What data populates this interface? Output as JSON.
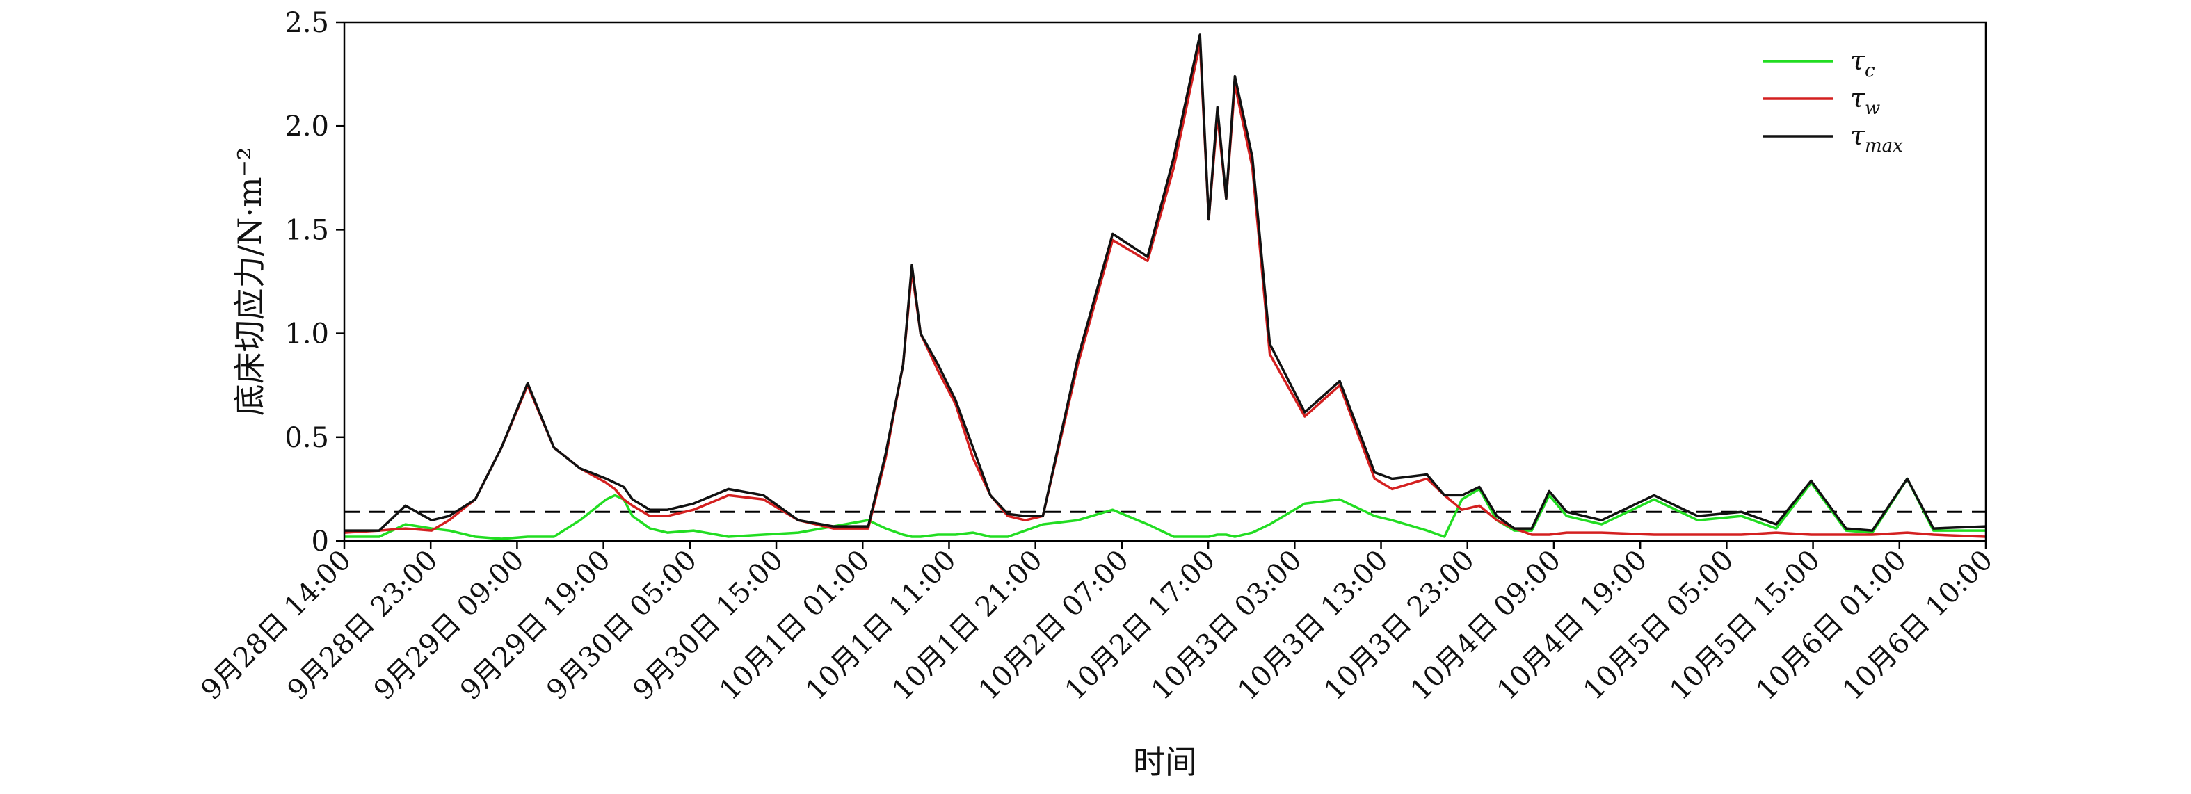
{
  "chart_data": {
    "type": "line",
    "xlabel": "时间",
    "ylabel": "底床切应力/N·m⁻²",
    "ylim": [
      0,
      2.5
    ],
    "yticks": [
      "0",
      "0.5",
      "1.0",
      "1.5",
      "2.0",
      "2.5"
    ],
    "xtick_labels": [
      "9月28日 14:00",
      "9月28日 23:00",
      "9月29日 09:00",
      "9月29日 19:00",
      "9月30日 05:00",
      "9月30日 15:00",
      "10月1日 01:00",
      "10月1日 11:00",
      "10月1日 21:00",
      "10月2日 07:00",
      "10月2日 17:00",
      "10月3日 03:00",
      "10月3日 13:00",
      "10月3日 23:00",
      "10月4日 09:00",
      "10月4日 19:00",
      "10月5日 05:00",
      "10月5日 15:00",
      "10月6日 01:00",
      "10月6日 10:00"
    ],
    "x_unit": "hours since 9月28日 14:00",
    "x_range": [
      0,
      188
    ],
    "threshold": {
      "value": 0.14,
      "style": "dashed",
      "color": "#000000"
    },
    "grid": false,
    "legend_position": "top-right",
    "series": [
      {
        "name": "τ_c",
        "legend_main": "τ",
        "legend_sub": "c",
        "color": "#22dd22",
        "x": [
          0,
          4,
          7,
          10,
          12,
          15,
          18,
          21,
          24,
          27,
          30,
          31,
          32,
          33,
          35,
          37,
          40,
          44,
          48,
          52,
          56,
          60,
          62,
          64,
          65,
          66,
          68,
          70,
          72,
          74,
          76,
          78,
          80,
          84,
          88,
          92,
          95,
          98,
          99,
          100,
          101,
          102,
          104,
          106,
          110,
          114,
          118,
          120,
          124,
          126,
          128,
          130,
          132,
          134,
          136,
          138,
          140,
          144,
          150,
          155,
          160,
          164,
          168,
          172,
          175,
          179,
          182,
          188
        ],
        "values": [
          0.02,
          0.02,
          0.08,
          0.06,
          0.05,
          0.02,
          0.01,
          0.02,
          0.02,
          0.1,
          0.2,
          0.22,
          0.2,
          0.12,
          0.06,
          0.04,
          0.05,
          0.02,
          0.03,
          0.04,
          0.07,
          0.1,
          0.06,
          0.03,
          0.02,
          0.02,
          0.03,
          0.03,
          0.04,
          0.02,
          0.02,
          0.05,
          0.08,
          0.1,
          0.15,
          0.08,
          0.02,
          0.02,
          0.02,
          0.03,
          0.03,
          0.02,
          0.04,
          0.08,
          0.18,
          0.2,
          0.12,
          0.1,
          0.05,
          0.02,
          0.2,
          0.25,
          0.1,
          0.05,
          0.05,
          0.22,
          0.12,
          0.08,
          0.2,
          0.1,
          0.12,
          0.06,
          0.28,
          0.05,
          0.04,
          0.3,
          0.05,
          0.05
        ]
      },
      {
        "name": "τ_w",
        "legend_main": "τ",
        "legend_sub": "w",
        "color": "#d42020",
        "x": [
          0,
          4,
          7,
          10,
          12,
          15,
          18,
          21,
          24,
          27,
          30,
          31,
          32,
          33,
          35,
          37,
          40,
          44,
          48,
          52,
          56,
          60,
          62,
          64,
          65,
          66,
          68,
          70,
          72,
          74,
          76,
          78,
          80,
          84,
          88,
          92,
          95,
          98,
          99,
          100,
          101,
          102,
          104,
          106,
          110,
          114,
          118,
          120,
          124,
          126,
          128,
          130,
          132,
          134,
          136,
          138,
          140,
          144,
          150,
          155,
          160,
          164,
          168,
          172,
          175,
          179,
          182,
          188
        ],
        "values": [
          0.04,
          0.05,
          0.06,
          0.05,
          0.1,
          0.2,
          0.45,
          0.75,
          0.45,
          0.35,
          0.28,
          0.25,
          0.2,
          0.17,
          0.12,
          0.12,
          0.15,
          0.22,
          0.2,
          0.1,
          0.06,
          0.06,
          0.4,
          0.85,
          1.3,
          1.0,
          0.82,
          0.66,
          0.4,
          0.22,
          0.12,
          0.1,
          0.12,
          0.85,
          1.45,
          1.35,
          1.8,
          2.4,
          1.55,
          2.05,
          1.65,
          2.2,
          1.8,
          0.9,
          0.6,
          0.75,
          0.3,
          0.25,
          0.3,
          0.22,
          0.15,
          0.17,
          0.1,
          0.06,
          0.03,
          0.03,
          0.04,
          0.04,
          0.03,
          0.03,
          0.03,
          0.04,
          0.03,
          0.03,
          0.03,
          0.04,
          0.03,
          0.02
        ]
      },
      {
        "name": "τ_max",
        "legend_main": "τ",
        "legend_sub": "max",
        "color": "#111111",
        "x": [
          0,
          4,
          7,
          10,
          12,
          15,
          18,
          21,
          24,
          27,
          30,
          31,
          32,
          33,
          35,
          37,
          40,
          44,
          48,
          52,
          56,
          60,
          62,
          64,
          65,
          66,
          68,
          70,
          72,
          74,
          76,
          78,
          80,
          84,
          88,
          92,
          95,
          98,
          99,
          100,
          101,
          102,
          104,
          106,
          110,
          114,
          118,
          120,
          124,
          126,
          128,
          130,
          132,
          134,
          136,
          138,
          140,
          144,
          150,
          155,
          160,
          164,
          168,
          172,
          175,
          179,
          182,
          188
        ],
        "values": [
          0.05,
          0.05,
          0.17,
          0.1,
          0.12,
          0.2,
          0.45,
          0.76,
          0.45,
          0.35,
          0.3,
          0.28,
          0.26,
          0.2,
          0.15,
          0.15,
          0.18,
          0.25,
          0.22,
          0.1,
          0.07,
          0.07,
          0.42,
          0.85,
          1.33,
          1.0,
          0.85,
          0.68,
          0.45,
          0.22,
          0.13,
          0.12,
          0.12,
          0.88,
          1.48,
          1.37,
          1.85,
          2.44,
          1.55,
          2.09,
          1.65,
          2.24,
          1.85,
          0.95,
          0.62,
          0.77,
          0.33,
          0.3,
          0.32,
          0.22,
          0.22,
          0.26,
          0.12,
          0.06,
          0.06,
          0.24,
          0.14,
          0.1,
          0.22,
          0.12,
          0.14,
          0.08,
          0.29,
          0.06,
          0.05,
          0.3,
          0.06,
          0.07
        ]
      }
    ]
  }
}
